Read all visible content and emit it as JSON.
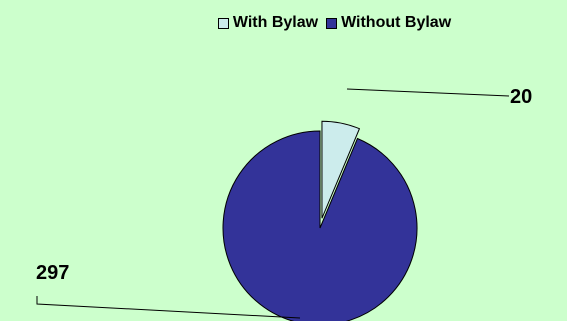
{
  "chart_data": {
    "type": "pie",
    "categories": [
      "With Bylaw",
      "Without Bylaw"
    ],
    "values": [
      20,
      297
    ],
    "legend": {
      "position": "top",
      "entries": [
        "With Bylaw",
        "Without Bylaw"
      ]
    },
    "colors": [
      "#CCECEC",
      "#333399"
    ],
    "data_labels": [
      "20",
      "297"
    ],
    "exploded": [
      true,
      false
    ],
    "title": ""
  }
}
